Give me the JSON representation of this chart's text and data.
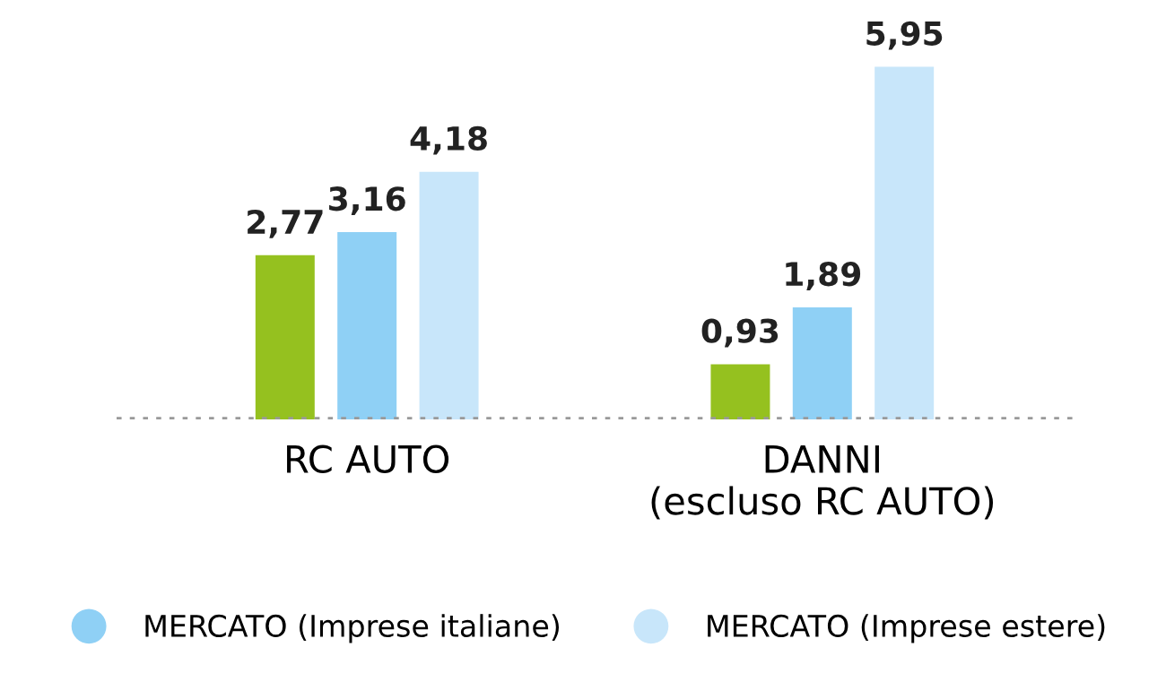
{
  "chart_data": {
    "type": "bar",
    "categories": [
      "RC AUTO",
      "DANNI\n(escluso RC AUTO)"
    ],
    "series": [
      {
        "color": "#95c11f",
        "values": [
          2.77,
          0.93
        ],
        "value_labels": [
          "2,77",
          "0,93"
        ]
      },
      {
        "name": "MERCATO (Imprese italiane)",
        "color": "#8fd0f5",
        "values": [
          3.16,
          1.89
        ],
        "value_labels": [
          "3,16",
          "1,89"
        ]
      },
      {
        "name": "MERCATO (Imprese estere)",
        "color": "#c8e6fa",
        "values": [
          4.18,
          5.95
        ],
        "value_labels": [
          "4,18",
          "5,95"
        ]
      }
    ],
    "grid": false,
    "legend": "bottom"
  }
}
